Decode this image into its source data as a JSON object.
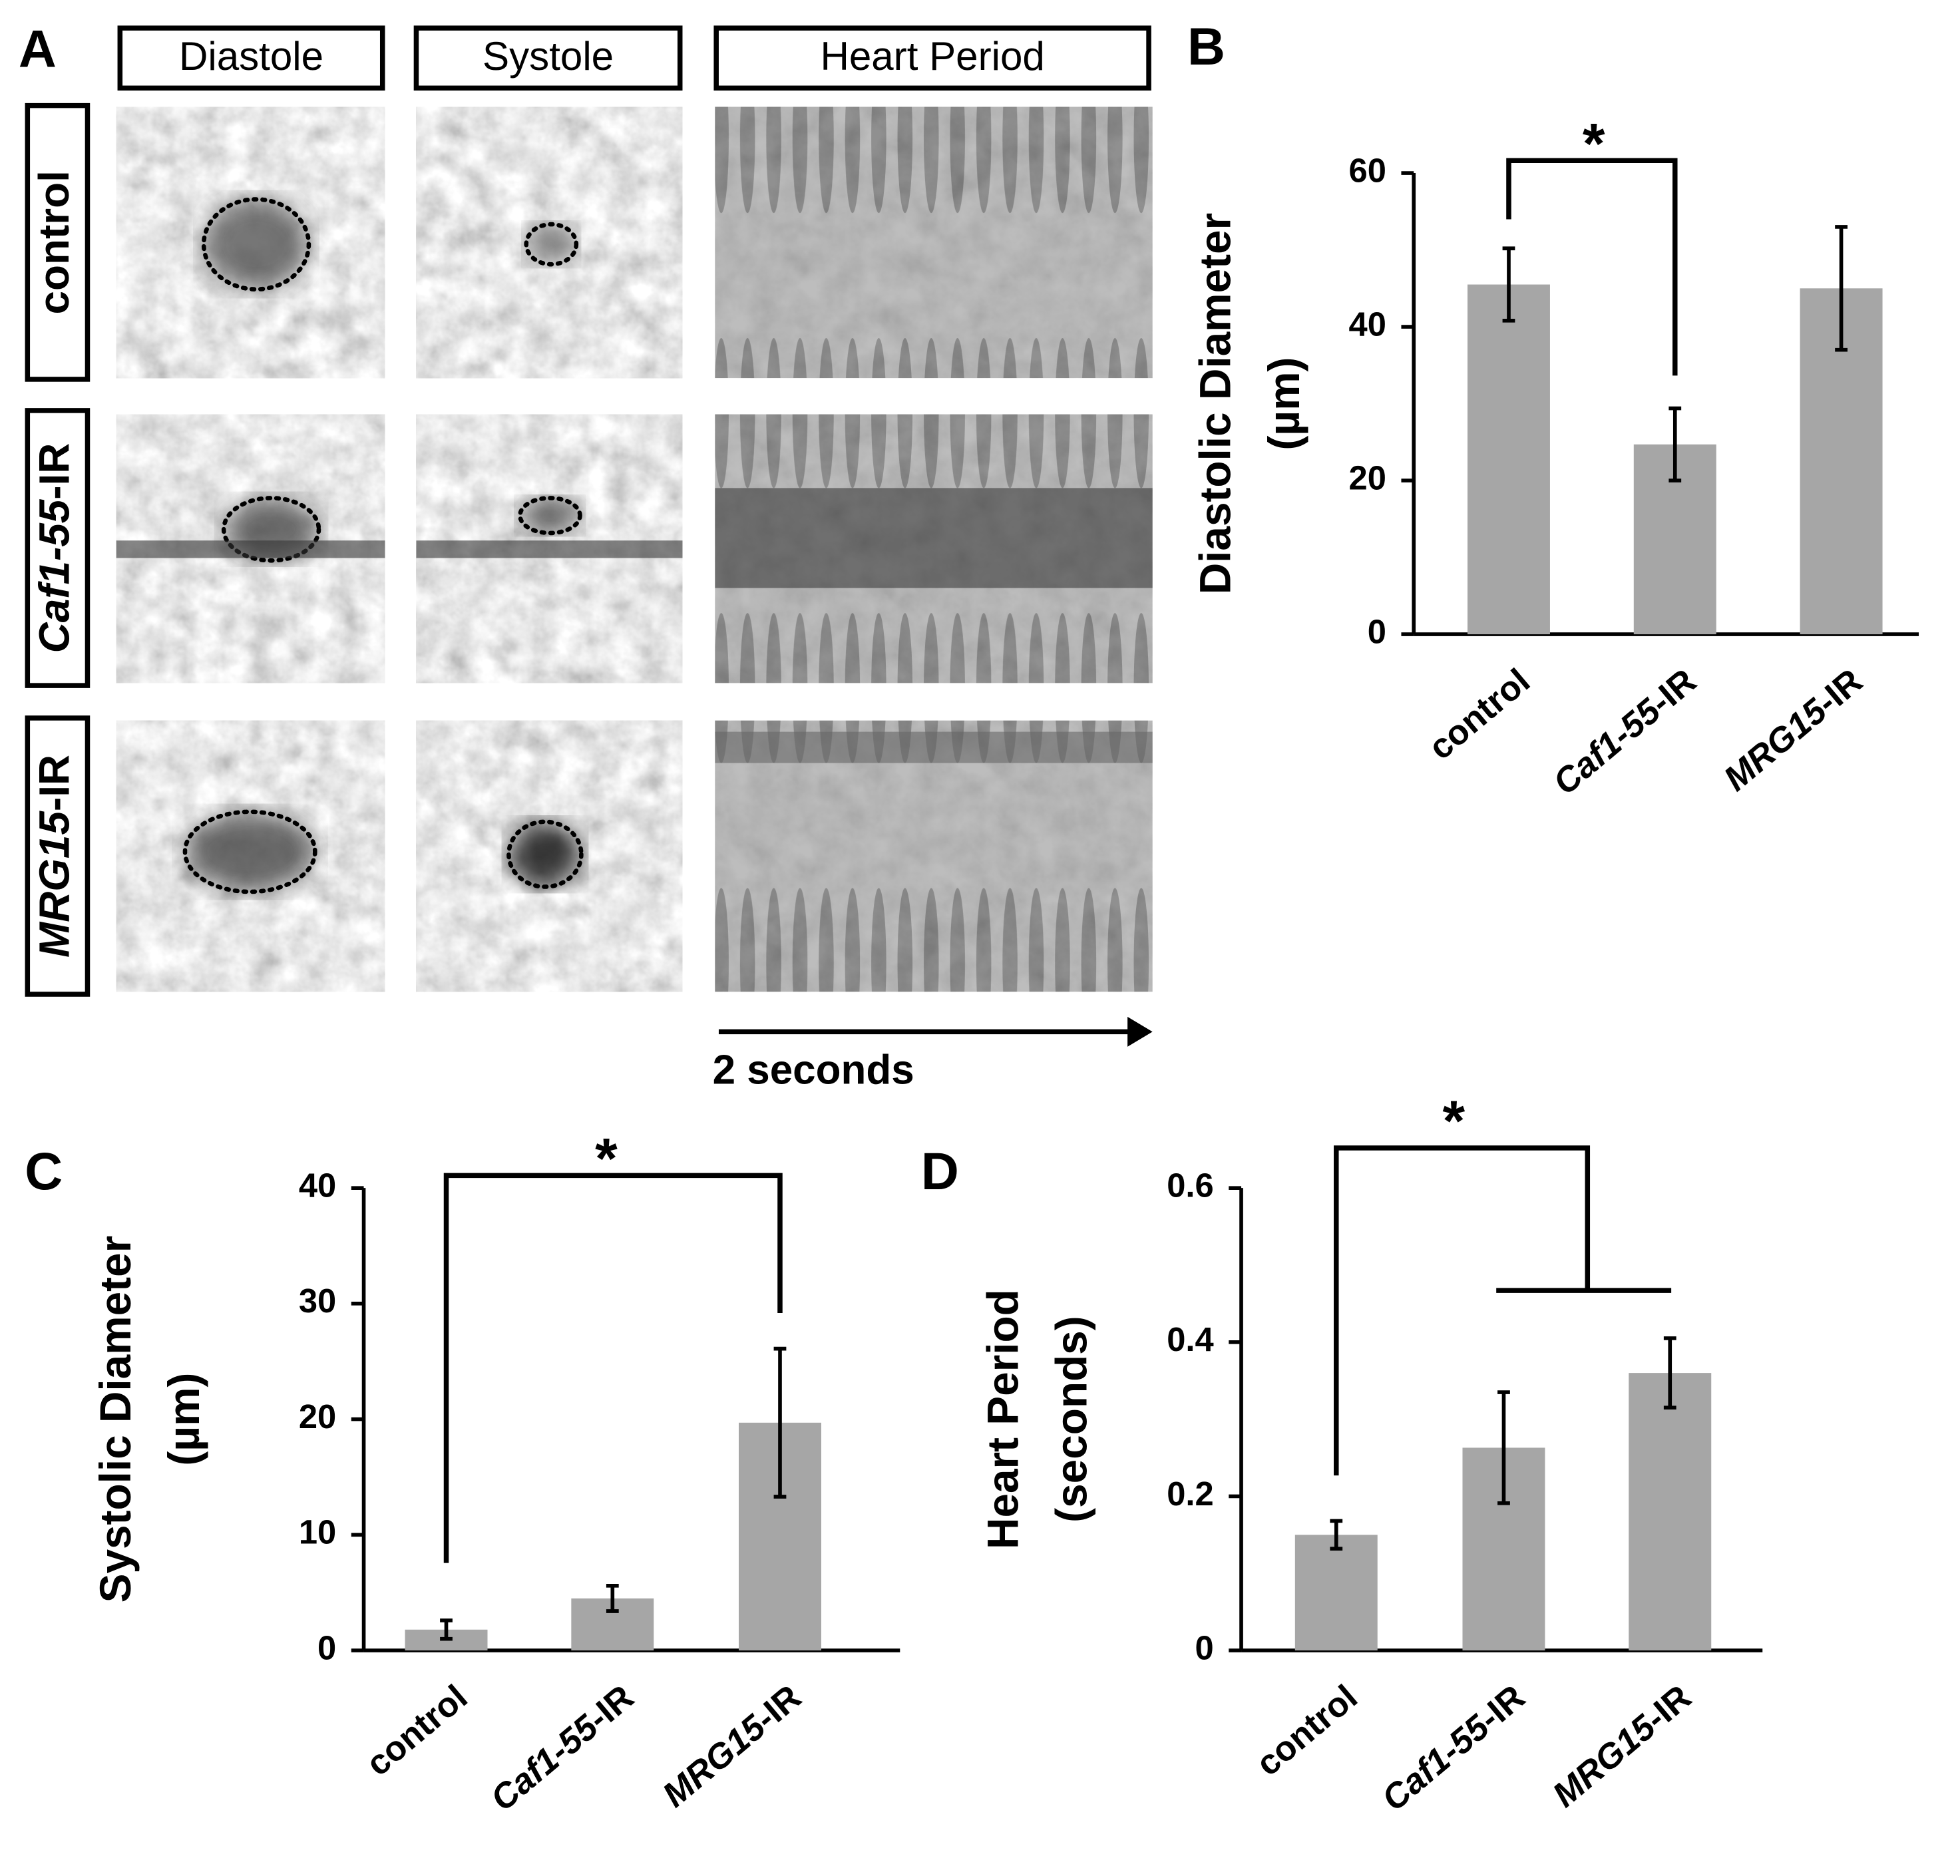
{
  "panel_a": {
    "panel_label": "A",
    "columns": [
      "Diastole",
      "Systole",
      "Heart Period"
    ],
    "rows": [
      "control",
      "Caf1-55-IR",
      "MRG15-IR"
    ],
    "scale_label": "2 seconds"
  },
  "chart_data": [
    {
      "type": "bar",
      "panel_label": "B",
      "ylabel": [
        "Diastolic Diameter",
        "(µm)"
      ],
      "categories": [
        "control",
        "Caf1-55-IR",
        "MRG15-IR"
      ],
      "values": [
        45.5,
        24.7,
        45
      ],
      "errors": [
        4.7,
        4.7,
        8
      ],
      "color": "#a6a6a6",
      "ylim": [
        0,
        60
      ],
      "yticks": [
        0,
        20,
        40,
        60
      ],
      "annotation": "*"
    },
    {
      "type": "bar",
      "panel_label": "C",
      "ylabel": [
        "Systolic Diameter",
        "(µm)"
      ],
      "categories": [
        "control",
        "Caf1-55-IR",
        "MRG15-IR"
      ],
      "values": [
        1.8,
        4.5,
        19.7
      ],
      "errors": [
        0.8,
        1.1,
        6.4
      ],
      "color": "#a6a6a6",
      "ylim": [
        0,
        40
      ],
      "yticks": [
        0,
        10,
        20,
        30,
        40
      ],
      "annotation": "*"
    },
    {
      "type": "bar",
      "panel_label": "D",
      "ylabel": [
        "Heart Period",
        "(seconds)"
      ],
      "categories": [
        "control",
        "Caf1-55-IR",
        "MRG15-IR"
      ],
      "values": [
        0.15,
        0.263,
        0.36
      ],
      "errors": [
        0.018,
        0.072,
        0.045
      ],
      "color": "#a6a6a6",
      "ylim": [
        0,
        0.6
      ],
      "yticks": [
        0,
        0.2,
        0.4,
        0.6
      ],
      "annotation": "*"
    }
  ]
}
